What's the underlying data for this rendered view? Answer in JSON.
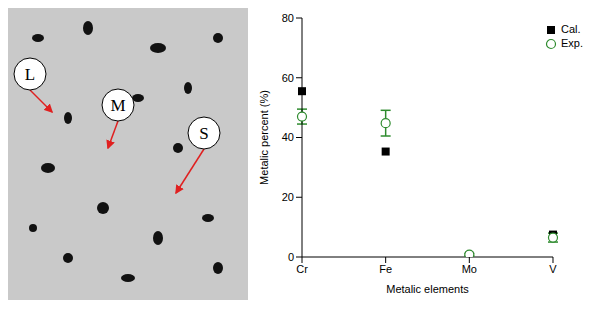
{
  "chart_data": {
    "type": "scatter",
    "categories": [
      "Cr",
      "Fe",
      "Mo",
      "V"
    ],
    "xlabel": "Metalic elements",
    "ylabel": "Metalic percent (%)",
    "ylim": [
      0,
      80
    ],
    "yticks": [
      0,
      20,
      40,
      60,
      80
    ],
    "legend": "upper right",
    "series": [
      {
        "name": "Cal.",
        "color": "#000000",
        "marker": "square",
        "values": [
          55.5,
          35.3,
          0.5,
          7.5
        ]
      },
      {
        "name": "Exp.",
        "color": "#2e8b2e",
        "marker": "circle",
        "values": [
          47,
          44.8,
          0.8,
          6.5
        ],
        "errors": [
          2.5,
          4.3,
          0.4,
          1.5
        ]
      }
    ]
  },
  "micrograph": {
    "labels": [
      "L",
      "M",
      "S"
    ]
  }
}
